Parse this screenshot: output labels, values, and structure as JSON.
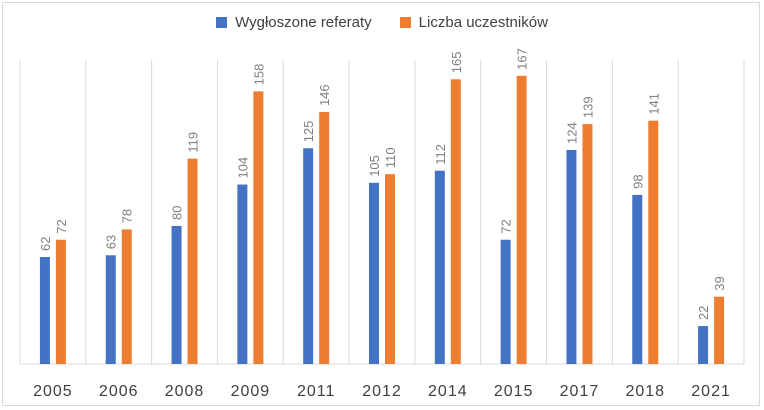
{
  "colors": {
    "series_1": "#4472c4",
    "series_2": "#ed7d31",
    "gridline": "#d9d9d9",
    "label": "#7f7f7f",
    "tick": "#404040"
  },
  "chart_data": {
    "type": "bar",
    "categories": [
      "2005",
      "2006",
      "2008",
      "2009",
      "2011",
      "2012",
      "2014",
      "2015",
      "2017",
      "2018",
      "2021"
    ],
    "series": [
      {
        "name": "Wygłoszone referaty",
        "values": [
          62,
          63,
          80,
          104,
          125,
          105,
          112,
          72,
          124,
          98,
          22
        ]
      },
      {
        "name": "Liczba uczestników",
        "values": [
          72,
          78,
          119,
          158,
          146,
          110,
          165,
          167,
          139,
          141,
          39
        ]
      }
    ],
    "ylim": [
      0,
      175
    ],
    "grid": "vertical category separators",
    "legend_position": "top",
    "data_labels": true
  }
}
